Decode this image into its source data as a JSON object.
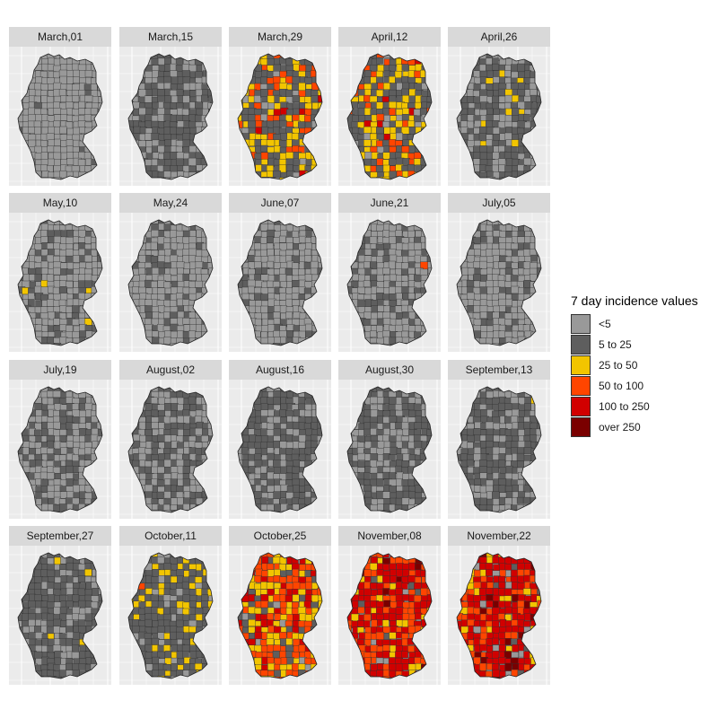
{
  "legend": {
    "title": "7 day incidence values",
    "items": [
      {
        "label": "<5",
        "color": "#999999"
      },
      {
        "label": "5 to 25",
        "color": "#5e5e5e"
      },
      {
        "label": "25 to 50",
        "color": "#f2c500"
      },
      {
        "label": "50 to 100",
        "color": "#ff4500"
      },
      {
        "label": "100 to 250",
        "color": "#d10000"
      },
      {
        "label": "over 250",
        "color": "#7a0000"
      }
    ]
  },
  "panels": [
    {
      "title": "March,01",
      "mix": [
        0.95,
        0.05,
        0,
        0,
        0,
        0
      ]
    },
    {
      "title": "March,15",
      "mix": [
        0.4,
        0.57,
        0.02,
        0.01,
        0,
        0
      ]
    },
    {
      "title": "March,29",
      "mix": [
        0.02,
        0.45,
        0.3,
        0.15,
        0.07,
        0.01
      ]
    },
    {
      "title": "April,12",
      "mix": [
        0.02,
        0.5,
        0.28,
        0.13,
        0.06,
        0.01
      ]
    },
    {
      "title": "April,26",
      "mix": [
        0.3,
        0.6,
        0.08,
        0.02,
        0,
        0
      ]
    },
    {
      "title": "May,10",
      "mix": [
        0.7,
        0.27,
        0.02,
        0.01,
        0,
        0
      ]
    },
    {
      "title": "May,24",
      "mix": [
        0.8,
        0.19,
        0.01,
        0,
        0,
        0
      ]
    },
    {
      "title": "June,07",
      "mix": [
        0.83,
        0.16,
        0.01,
        0,
        0,
        0
      ]
    },
    {
      "title": "June,21",
      "mix": [
        0.75,
        0.23,
        0.005,
        0.005,
        0.01,
        0
      ]
    },
    {
      "title": "July,05",
      "mix": [
        0.8,
        0.19,
        0,
        0.01,
        0,
        0
      ]
    },
    {
      "title": "July,19",
      "mix": [
        0.65,
        0.34,
        0.01,
        0,
        0,
        0
      ]
    },
    {
      "title": "August,02",
      "mix": [
        0.45,
        0.53,
        0.01,
        0,
        0.01,
        0
      ]
    },
    {
      "title": "August,16",
      "mix": [
        0.25,
        0.73,
        0.01,
        0.01,
        0,
        0
      ]
    },
    {
      "title": "August,30",
      "mix": [
        0.35,
        0.62,
        0.03,
        0,
        0,
        0
      ]
    },
    {
      "title": "September,13",
      "mix": [
        0.35,
        0.62,
        0.03,
        0,
        0,
        0
      ]
    },
    {
      "title": "September,27",
      "mix": [
        0.2,
        0.72,
        0.07,
        0.01,
        0,
        0
      ]
    },
    {
      "title": "October,11",
      "mix": [
        0.1,
        0.62,
        0.22,
        0.05,
        0.01,
        0
      ]
    },
    {
      "title": "October,25",
      "mix": [
        0,
        0.15,
        0.25,
        0.38,
        0.2,
        0.02
      ]
    },
    {
      "title": "November,08",
      "mix": [
        0,
        0.02,
        0.1,
        0.3,
        0.5,
        0.08
      ]
    },
    {
      "title": "November,22",
      "mix": [
        0,
        0.02,
        0.1,
        0.25,
        0.5,
        0.13
      ]
    }
  ]
}
